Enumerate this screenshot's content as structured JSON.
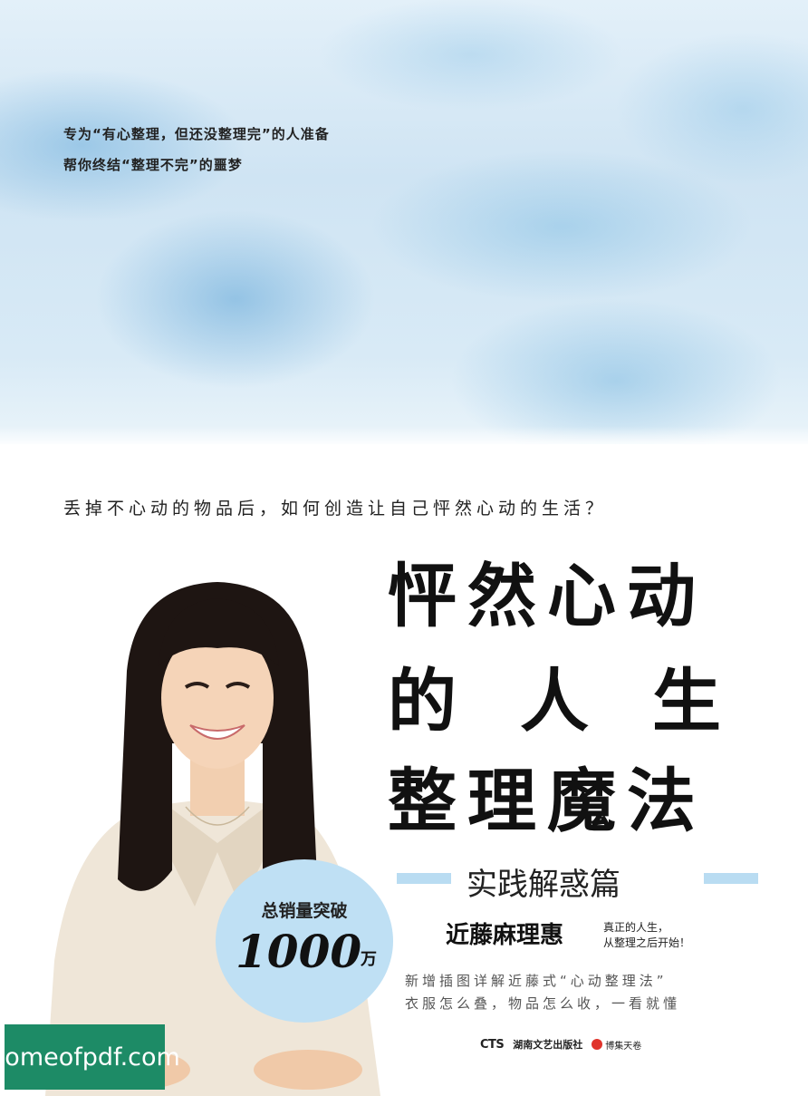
{
  "cover": {
    "tagline": [
      "专为“有心整理，但还没整理完”的人准备",
      "帮你终结“整理不完”的噩梦"
    ],
    "question": "丢掉不心动的物品后，如何创造让自己怦然心动的生活？",
    "title": [
      "怦然心动",
      "的人生",
      "整理魔法"
    ],
    "subtitle": "实践解惑篇",
    "author": "近藤麻理惠",
    "author_note": [
      "真正的人生，",
      "从整理之后开始！"
    ],
    "blurb": [
      "新增插图详解近藤式“心动整理法”",
      "衣服怎么叠，物品怎么收，一看就懂"
    ],
    "sales_badge": {
      "line1": "总销量突破",
      "number": "1000",
      "unit": "万"
    },
    "publishers": {
      "cts": "CTS",
      "hunan": "湖南文艺出版社",
      "cs": "博集天卷"
    },
    "watermark": "homeofpdf.com",
    "colors": {
      "sky": "#cfe4f3",
      "accent_bar": "#b9dcf2",
      "badge": "#bfe0f4",
      "watermark": "#1d8b66"
    }
  }
}
